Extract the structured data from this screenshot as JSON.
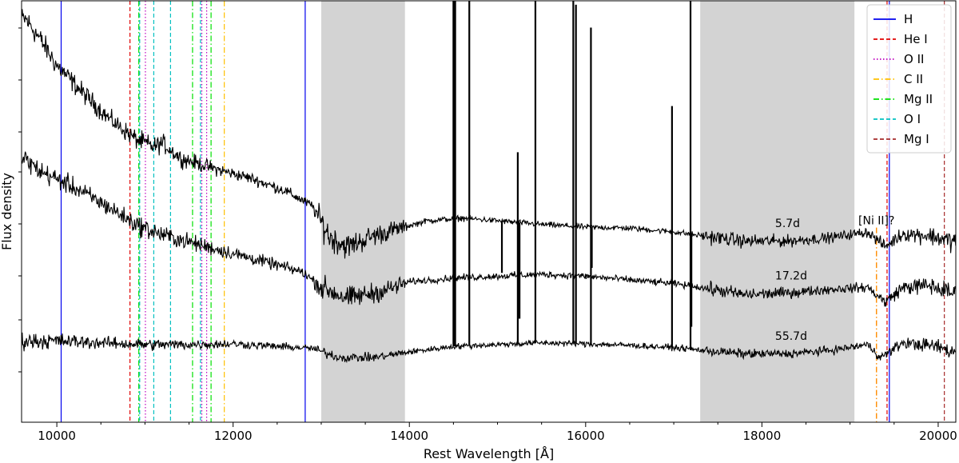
{
  "chart_data": {
    "type": "line",
    "xlabel": "Rest Wavelength [Å]",
    "ylabel": "Flux density",
    "xlim": [
      9600,
      20200
    ],
    "x_ticks": [
      10000,
      12000,
      14000,
      16000,
      18000,
      20000
    ],
    "y_ticks_shown": false,
    "grid": false,
    "legend_position": "top-right",
    "series": [
      {
        "name": "5.7d",
        "color": "#000000",
        "anchors": [
          [
            9650,
            10.6
          ],
          [
            9800,
            10.1
          ],
          [
            10000,
            9.35
          ],
          [
            10300,
            8.6
          ],
          [
            10600,
            7.9
          ],
          [
            10900,
            7.35
          ],
          [
            11100,
            7.15
          ],
          [
            11200,
            7.25
          ],
          [
            11400,
            6.85
          ],
          [
            11800,
            6.55
          ],
          [
            12200,
            6.3
          ],
          [
            12600,
            5.95
          ],
          [
            12900,
            5.55
          ],
          [
            13100,
            4.7
          ],
          [
            13300,
            4.45
          ],
          [
            13600,
            4.75
          ],
          [
            13900,
            4.95
          ],
          [
            14200,
            5.15
          ],
          [
            14600,
            5.22
          ],
          [
            15000,
            5.15
          ],
          [
            15500,
            5.05
          ],
          [
            16000,
            4.98
          ],
          [
            16500,
            4.95
          ],
          [
            17000,
            4.85
          ],
          [
            17300,
            4.75
          ],
          [
            17800,
            4.6
          ],
          [
            18300,
            4.6
          ],
          [
            18800,
            4.7
          ],
          [
            19200,
            4.85
          ],
          [
            19400,
            4.45
          ],
          [
            19600,
            4.8
          ],
          [
            19900,
            4.75
          ],
          [
            20150,
            4.6
          ]
        ],
        "noise": [
          [
            9600,
            0.25
          ],
          [
            10600,
            0.18
          ],
          [
            11000,
            0.2
          ],
          [
            12000,
            0.12
          ],
          [
            12900,
            0.1
          ],
          [
            13000,
            0.3
          ],
          [
            13900,
            0.18
          ],
          [
            14000,
            0.06
          ],
          [
            17300,
            0.06
          ],
          [
            17400,
            0.15
          ],
          [
            19000,
            0.1
          ],
          [
            19400,
            0.12
          ],
          [
            20000,
            0.2
          ]
        ]
      },
      {
        "name": "17.2d",
        "color": "#000000",
        "anchors": [
          [
            9650,
            6.8
          ],
          [
            9800,
            6.5
          ],
          [
            10200,
            6.05
          ],
          [
            10600,
            5.5
          ],
          [
            10900,
            5.05
          ],
          [
            11100,
            4.85
          ],
          [
            11300,
            4.7
          ],
          [
            11700,
            4.45
          ],
          [
            12100,
            4.2
          ],
          [
            12500,
            3.95
          ],
          [
            12800,
            3.75
          ],
          [
            13000,
            3.35
          ],
          [
            13300,
            3.05
          ],
          [
            13700,
            3.25
          ],
          [
            14000,
            3.5
          ],
          [
            14500,
            3.6
          ],
          [
            15000,
            3.65
          ],
          [
            15500,
            3.7
          ],
          [
            16000,
            3.65
          ],
          [
            16500,
            3.55
          ],
          [
            17000,
            3.45
          ],
          [
            17300,
            3.35
          ],
          [
            17800,
            3.15
          ],
          [
            18300,
            3.2
          ],
          [
            18800,
            3.3
          ],
          [
            19200,
            3.35
          ],
          [
            19400,
            2.95
          ],
          [
            19600,
            3.35
          ],
          [
            19900,
            3.4
          ],
          [
            20150,
            3.2
          ]
        ],
        "noise": [
          [
            9600,
            0.22
          ],
          [
            10600,
            0.18
          ],
          [
            11000,
            0.2
          ],
          [
            12000,
            0.14
          ],
          [
            12900,
            0.1
          ],
          [
            13000,
            0.25
          ],
          [
            13900,
            0.18
          ],
          [
            14000,
            0.07
          ],
          [
            17300,
            0.07
          ],
          [
            17400,
            0.14
          ],
          [
            19000,
            0.09
          ],
          [
            19400,
            0.12
          ],
          [
            20000,
            0.2
          ]
        ]
      },
      {
        "name": "55.7d",
        "color": "#000000",
        "anchors": [
          [
            9650,
            1.9
          ],
          [
            10000,
            1.9
          ],
          [
            10500,
            1.85
          ],
          [
            11000,
            1.8
          ],
          [
            11500,
            1.8
          ],
          [
            12000,
            1.82
          ],
          [
            12500,
            1.75
          ],
          [
            12900,
            1.7
          ],
          [
            13200,
            1.45
          ],
          [
            13600,
            1.45
          ],
          [
            14000,
            1.6
          ],
          [
            14500,
            1.75
          ],
          [
            15000,
            1.8
          ],
          [
            15500,
            1.85
          ],
          [
            16000,
            1.82
          ],
          [
            16500,
            1.78
          ],
          [
            17000,
            1.72
          ],
          [
            17300,
            1.65
          ],
          [
            17800,
            1.55
          ],
          [
            18300,
            1.55
          ],
          [
            18800,
            1.65
          ],
          [
            19200,
            1.8
          ],
          [
            19350,
            1.45
          ],
          [
            19600,
            1.85
          ],
          [
            20000,
            1.75
          ],
          [
            20150,
            1.6
          ]
        ],
        "noise": [
          [
            9600,
            0.18
          ],
          [
            10600,
            0.12
          ],
          [
            11000,
            0.12
          ],
          [
            12000,
            0.09
          ],
          [
            12900,
            0.07
          ],
          [
            13000,
            0.1
          ],
          [
            13900,
            0.08
          ],
          [
            14000,
            0.06
          ],
          [
            17300,
            0.06
          ],
          [
            17400,
            0.1
          ],
          [
            19000,
            0.08
          ],
          [
            19400,
            0.1
          ],
          [
            20000,
            0.15
          ]
        ]
      }
    ],
    "ylim": [
      -0.3,
      11.1
    ],
    "telluric_bands": [
      [
        13000,
        13950
      ],
      [
        17300,
        19050
      ]
    ],
    "sky_spikes": [
      {
        "x": 14500,
        "amp": 10.7
      },
      {
        "x": 14520,
        "amp": 6.5
      },
      {
        "x": 14680,
        "amp": 10.7
      },
      {
        "x": 15050,
        "amp": -1.4
      },
      {
        "x": 15230,
        "amp": 1.9
      },
      {
        "x": 15250,
        "amp": -2.6
      },
      {
        "x": 15430,
        "amp": 10.7
      },
      {
        "x": 15860,
        "amp": 10.7
      },
      {
        "x": 15890,
        "amp": 6.0
      },
      {
        "x": 16060,
        "amp": 5.4
      },
      {
        "x": 16070,
        "amp": -1.1
      },
      {
        "x": 16980,
        "amp": 3.4
      },
      {
        "x": 17190,
        "amp": 10.7
      },
      {
        "x": 17200,
        "amp": -2.5
      }
    ],
    "line_ids": [
      {
        "name": "H",
        "color": "#0000ee",
        "style": "solid",
        "x": [
          10049,
          12818,
          19446
        ]
      },
      {
        "name": "He I",
        "color": "#e00000",
        "style": "dashed",
        "x": [
          10830,
          19420
        ]
      },
      {
        "name": "O II",
        "color": "#bf00bf",
        "style": "dotted",
        "x": [
          11005,
          11645,
          11700
        ]
      },
      {
        "name": "C II",
        "color": "#ffc000",
        "style": "dashdot",
        "x": [
          11900
        ]
      },
      {
        "name": "Mg II",
        "color": "#00e000",
        "style": "dashdot",
        "x": [
          10930,
          11540,
          11750
        ]
      },
      {
        "name": "O I",
        "color": "#00c0c0",
        "style": "dashed",
        "x": [
          10940,
          11100,
          11290,
          11630
        ]
      },
      {
        "name": "Mg I",
        "color": "#a52a2a",
        "style": "dashed",
        "x": [
          20070
        ]
      }
    ],
    "annotations": [
      {
        "text": "5.7d",
        "x": 18150,
        "series": "5.7d"
      },
      {
        "text": "17.2d",
        "x": 18150,
        "series": "17.2d"
      },
      {
        "text": "55.7d",
        "x": 18150,
        "series": "55.7d"
      },
      {
        "text": "[Ni II]?",
        "x": 19300,
        "color": "#ff8c00",
        "line_x": 19300,
        "line_color": "#ff8c00"
      }
    ]
  }
}
